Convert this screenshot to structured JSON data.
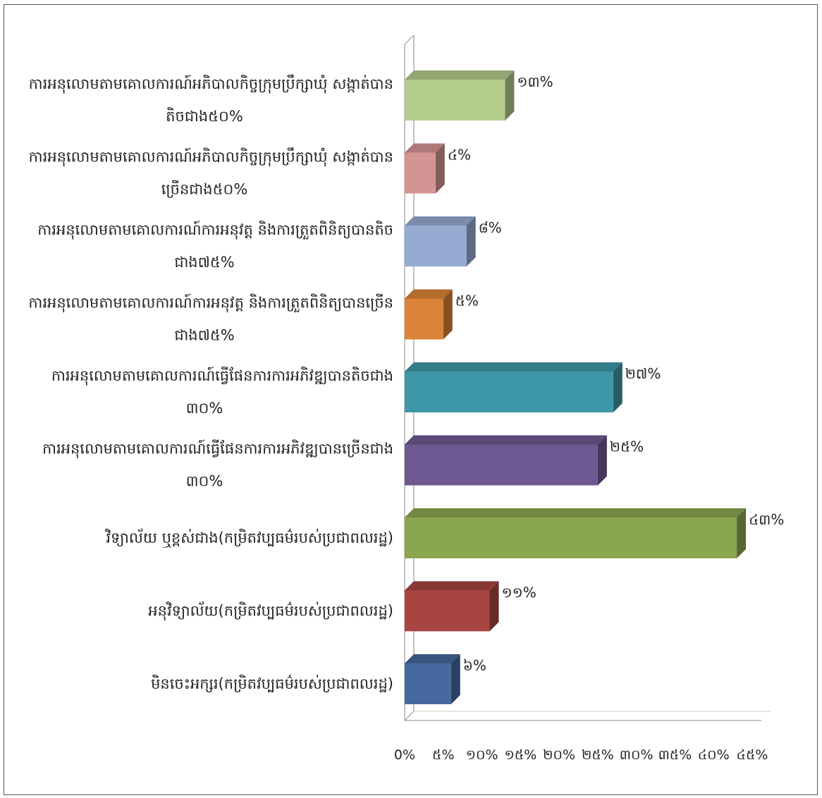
{
  "chart_data": {
    "type": "bar",
    "orientation": "horizontal",
    "style": "3d",
    "xlim": [
      0,
      45
    ],
    "x_ticks": [
      "0%",
      "៥%",
      "១០%",
      "១៥%",
      "២០%",
      "២៥%",
      "៣០%",
      "៣៥%",
      "៤០%",
      "៤៥%"
    ],
    "grid": false,
    "legend": "none",
    "bars": [
      {
        "label": [
          "ការអនុលោមតាមគោលការណ៍អភិបាលកិច្ចក្រុមប្រឹក្សាឃុំ សង្កាត់បាន",
          "តិចជាង៥០%"
        ],
        "value": 13,
        "value_label": "១៣%",
        "color": "#b3cc8c"
      },
      {
        "label": [
          "ការអនុលោមតាមគោលការណ៍អភិបាលកិច្ចក្រុមប្រឹក្សាឃុំ សង្កាត់បាន",
          "ច្រើនជាង៥០%"
        ],
        "value": 4,
        "value_label": "៤%",
        "color": "#d59494"
      },
      {
        "label": [
          "ការអនុលោមតាមគោលការណ៍ការអនុវត្ត និងការត្រួតពិនិត្យបានតិច",
          "ជាង៧៥%"
        ],
        "value": 8,
        "value_label": "៨%",
        "color": "#95abd1"
      },
      {
        "label": [
          "ការអនុលោមតាមគោលការណ៍ការអនុវត្ត និងការត្រួតពិនិត្យបានច្រើន",
          "ជាង៧៥%"
        ],
        "value": 5,
        "value_label": "៥%",
        "color": "#db8338"
      },
      {
        "label": [
          "ការអនុលោមតាមគោលការណ៍ធ្វើផែនការការអភិវឌ្ឍបានតិចជាង",
          "៣០%"
        ],
        "value": 27,
        "value_label": "២៧%",
        "color": "#3e97a8"
      },
      {
        "label": [
          "ការអនុលោមតាមគោលការណ៍ធ្វើផែនការការអភិវឌ្ឍបានច្រើនជាង",
          "៣០%"
        ],
        "value": 25,
        "value_label": "២៥%",
        "color": "#6e5891"
      },
      {
        "label": [
          "វិទ្យាល័យ ឬខ្ពស់ជាង(កម្រិតវប្បធម៌របស់ប្រជាពលរដ្ឋ)"
        ],
        "value": 43,
        "value_label": "៤៣%",
        "color": "#8aa64f"
      },
      {
        "label": [
          "អនុវិទ្យាល័យ(កម្រិតវប្បធម៌របស់ប្រជាពលរដ្ឋ)"
        ],
        "value": 11,
        "value_label": "១១%",
        "color": "#a84442"
      },
      {
        "label": [
          "មិនចេះអក្សរ(កម្រិតវប្បធម៌របស់ប្រជាពលរដ្ឋ)"
        ],
        "value": 6,
        "value_label": "៦%",
        "color": "#45699f"
      }
    ]
  }
}
